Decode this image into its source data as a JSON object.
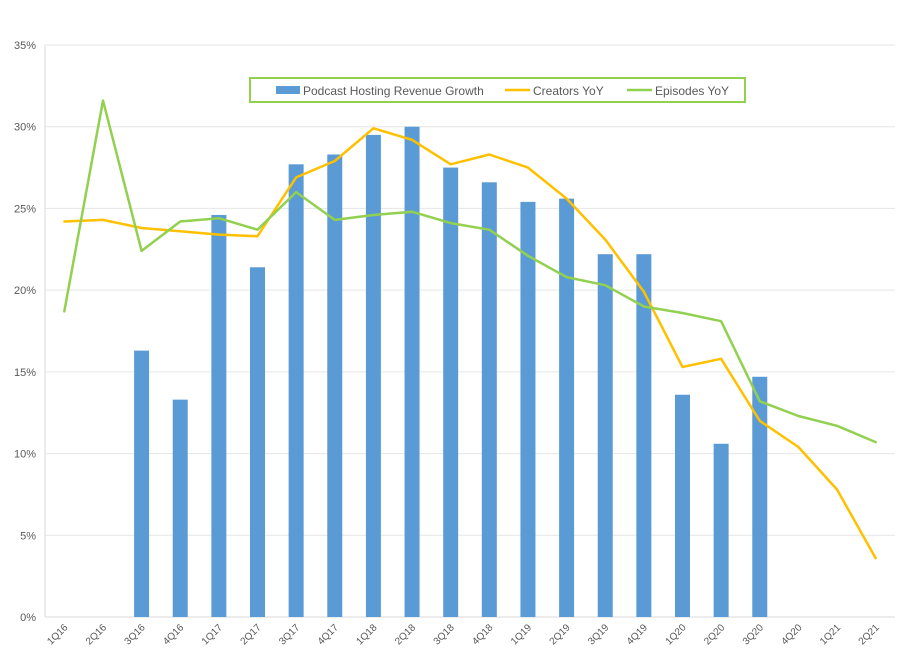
{
  "chart_data": {
    "type": "bar",
    "categories": [
      "1Q16",
      "2Q16",
      "3Q16",
      "4Q16",
      "1Q17",
      "2Q17",
      "3Q17",
      "4Q17",
      "1Q18",
      "2Q18",
      "3Q18",
      "4Q18",
      "1Q19",
      "2Q19",
      "3Q19",
      "4Q19",
      "1Q20",
      "2Q20",
      "3Q20",
      "4Q20",
      "1Q21",
      "2Q21"
    ],
    "y_ticks": [
      "0%",
      "5%",
      "10%",
      "15%",
      "20%",
      "25%",
      "30%",
      "35%"
    ],
    "ylim": [
      0,
      35
    ],
    "y_unit": "%",
    "grid": true,
    "legend_position": "top-center",
    "series": [
      {
        "name": "Podcast Hosting Revenue Growth",
        "kind": "bar",
        "color": "#5B9BD5",
        "values": [
          null,
          null,
          16.3,
          13.3,
          24.6,
          21.4,
          27.7,
          28.3,
          29.5,
          30.0,
          27.5,
          26.6,
          25.4,
          25.6,
          22.2,
          22.2,
          13.6,
          10.6,
          14.7,
          null,
          null,
          null
        ]
      },
      {
        "name": "Creators YoY",
        "kind": "line",
        "color": "#FFC000",
        "values": [
          24.2,
          24.3,
          23.8,
          23.6,
          23.4,
          23.3,
          26.9,
          27.9,
          29.9,
          29.2,
          27.7,
          28.3,
          27.5,
          25.6,
          23.1,
          19.9,
          15.3,
          15.8,
          12.0,
          10.4,
          7.8,
          3.6
        ]
      },
      {
        "name": "Episodes YoY",
        "kind": "line",
        "color": "#92D050",
        "values": [
          18.7,
          31.6,
          22.4,
          24.2,
          24.4,
          23.7,
          26.0,
          24.3,
          24.6,
          24.8,
          24.1,
          23.7,
          22.1,
          20.8,
          20.3,
          19.0,
          18.6,
          18.1,
          13.2,
          12.3,
          11.7,
          10.7
        ]
      }
    ]
  }
}
